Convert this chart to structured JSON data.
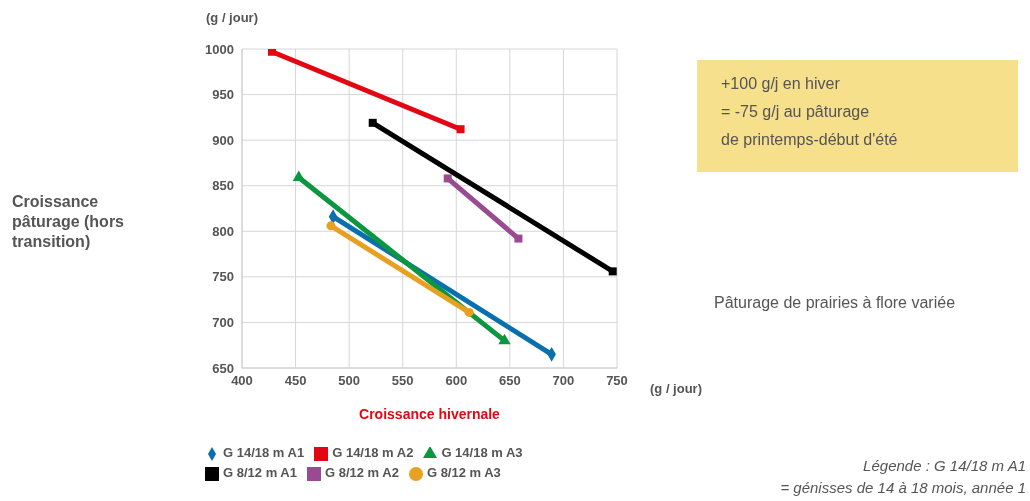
{
  "chart_data": {
    "type": "line",
    "xlabel": "Croissance hivernale",
    "annotations": [
      "Croissance pâturage (hors transition)",
      "(g / jour)",
      "(g / jour)",
      "+100 g/j en hiver\n= -75 g/j au pâturage\nde printemps-début d'été",
      "Pâturage de prairies à flore variée",
      "Légende : G 14/18 m A1\n= génisses de 14 à 18 mois, année 1"
    ],
    "series": [
      {
        "name": "G 14/18 m A1",
        "color": "#0a6fad",
        "marker": "diamond",
        "x": [
          485,
          689
        ],
        "values": [
          816,
          665
        ]
      },
      {
        "name": "G 14/18 m A2",
        "color": "#e30613",
        "marker": "square",
        "x": [
          428,
          604
        ],
        "values": [
          997,
          912
        ]
      },
      {
        "name": "G 14/18 m A3",
        "color": "#0b9640",
        "marker": "triangle",
        "x": [
          453,
          645
        ],
        "values": [
          859,
          680
        ]
      },
      {
        "name": "G 8/12 m A1",
        "color": "#000000",
        "marker": "square",
        "x": [
          522,
          746
        ],
        "values": [
          919,
          756
        ]
      },
      {
        "name": "G 8/12 m A2",
        "color": "#9a4a90",
        "marker": "square",
        "x": [
          592,
          658
        ],
        "values": [
          858,
          792
        ]
      },
      {
        "name": "G 8/12 m A3",
        "color": "#e8a020",
        "marker": "circle",
        "x": [
          483,
          612
        ],
        "values": [
          806,
          711
        ]
      }
    ],
    "xlim": [
      400,
      750
    ],
    "xticks": [
      400,
      450,
      500,
      550,
      600,
      650,
      700,
      750
    ],
    "ylim": [
      650,
      1000
    ],
    "yticks": [
      650,
      700,
      750,
      800,
      850,
      900,
      950,
      1000
    ],
    "grid": true,
    "legend": "bottom"
  }
}
